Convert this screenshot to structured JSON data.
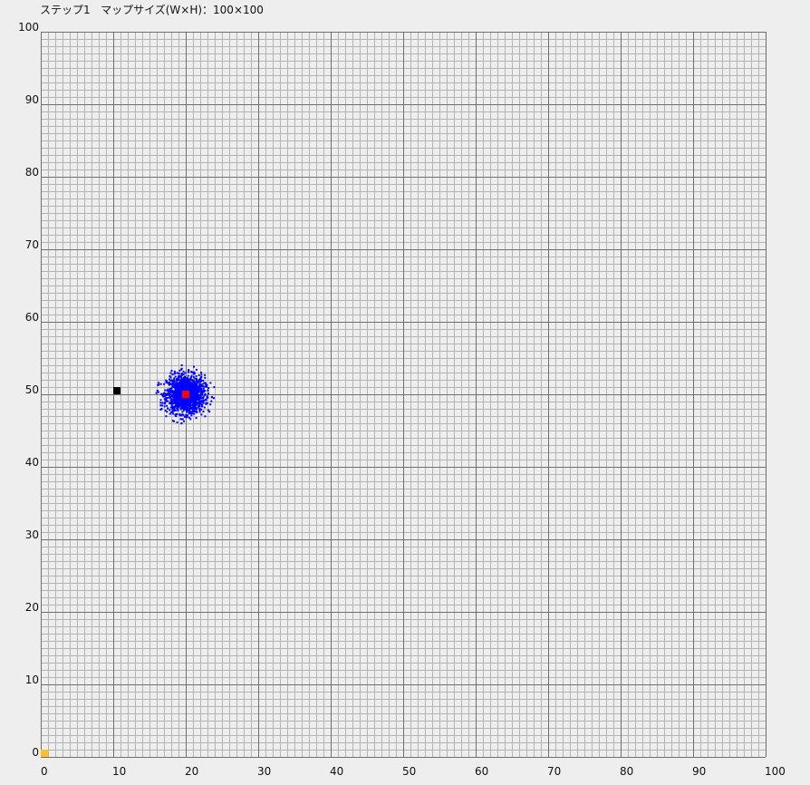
{
  "status": {
    "step_text": "ステップ1",
    "map_size_text": "マップサイズ(W×H)：100×100"
  },
  "colors": {
    "background": "#eeeeee",
    "minor_grid": "#b4b4b4",
    "major_grid": "#6e6e6e",
    "particles": "#0000ff",
    "estimate": "#ff0000",
    "landmark": "#000000",
    "origin": "#ffc020"
  },
  "chart_data": {
    "type": "scatter",
    "xlim": [
      0,
      100
    ],
    "ylim": [
      0,
      100
    ],
    "grid": true,
    "minor_step": 1,
    "major_step": 10,
    "x_ticks": [
      "0",
      "10",
      "20",
      "30",
      "40",
      "50",
      "60",
      "70",
      "80",
      "90",
      "100"
    ],
    "y_ticks": [
      "0",
      "10",
      "20",
      "30",
      "40",
      "50",
      "60",
      "70",
      "80",
      "90",
      "100"
    ],
    "series": [
      {
        "role": "particles",
        "marker": "dot",
        "color": "#0000ff",
        "cluster_center": [
          20,
          50
        ],
        "cluster_radius": 3,
        "count": 1500
      },
      {
        "role": "estimate",
        "marker": "square",
        "color": "#ff0000",
        "points": [
          [
            20,
            50
          ]
        ]
      },
      {
        "role": "landmark",
        "marker": "square",
        "color": "#000000",
        "points": [
          [
            10.5,
            50.5
          ]
        ]
      },
      {
        "role": "origin",
        "marker": "square",
        "color": "#ffc020",
        "points": [
          [
            0.5,
            0.5
          ]
        ]
      }
    ]
  }
}
